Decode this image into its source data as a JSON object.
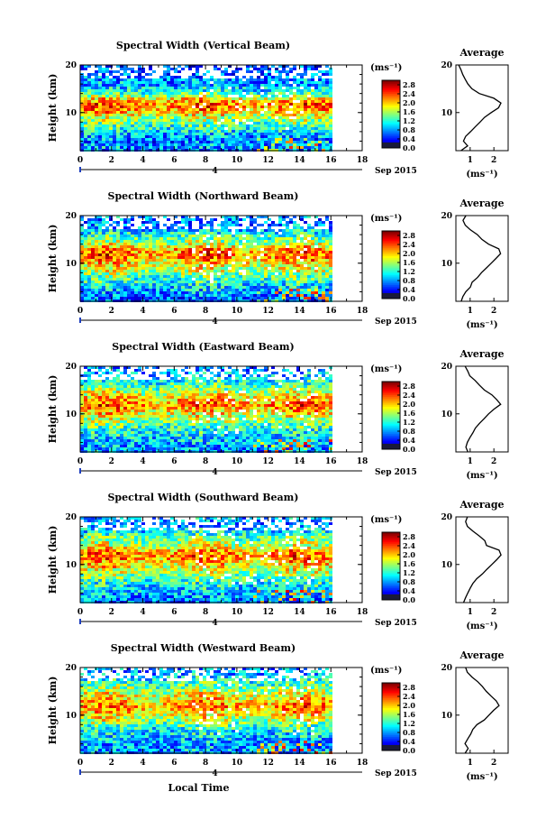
{
  "figure": {
    "bottom_xlabel": "Local Time",
    "date_label": "Sep 2015",
    "day_label": "4"
  },
  "chart_data": [
    {
      "type": "heatmap",
      "title": "Spectral Width (Vertical Beam)",
      "ylabel": "Height (km)",
      "xlabel": "",
      "xlim": [
        0,
        18
      ],
      "ylim": [
        2,
        20
      ],
      "x_ticks": [
        "0",
        "2",
        "4",
        "6",
        "8",
        "10",
        "12",
        "14",
        "16",
        "18"
      ],
      "y_ticks": [
        "10",
        "20"
      ],
      "data_extent_hours": [
        0,
        16
      ],
      "colorbar": {
        "unit": "(ms⁻¹)",
        "range": [
          0.0,
          3.0
        ],
        "ticks": [
          "2.8",
          "2.4",
          "2.0",
          "1.6",
          "1.2",
          "0.8",
          "0.4",
          "0.0"
        ]
      },
      "average_profile": {
        "title": "Average",
        "xlabel": "(ms⁻¹)",
        "xlim": [
          0.4,
          2.6
        ],
        "x_ticks": [
          "1",
          "2"
        ],
        "height_km": [
          2,
          3,
          4,
          5,
          6,
          7,
          8,
          9,
          10,
          11,
          12,
          13,
          14,
          15,
          16,
          17,
          18,
          19,
          20
        ],
        "width_ms": [
          0.6,
          0.9,
          0.7,
          0.8,
          1.0,
          1.2,
          1.4,
          1.6,
          1.9,
          2.2,
          2.3,
          2.0,
          1.4,
          1.1,
          0.9,
          0.8,
          0.7,
          0.6,
          0.5
        ]
      }
    },
    {
      "type": "heatmap",
      "title": "Spectral Width (Northward Beam)",
      "ylabel": "Height (km)",
      "xlabel": "",
      "xlim": [
        0,
        18
      ],
      "ylim": [
        2,
        20
      ],
      "x_ticks": [
        "0",
        "2",
        "4",
        "6",
        "8",
        "10",
        "12",
        "14",
        "16",
        "18"
      ],
      "y_ticks": [
        "10",
        "20"
      ],
      "data_extent_hours": [
        0,
        16
      ],
      "colorbar": {
        "unit": "(ms⁻¹)",
        "range": [
          0.0,
          3.0
        ],
        "ticks": [
          "2.8",
          "2.4",
          "2.0",
          "1.6",
          "1.2",
          "0.8",
          "0.4",
          "0.0"
        ]
      },
      "average_profile": {
        "title": "Average",
        "xlabel": "(ms⁻¹)",
        "xlim": [
          0.4,
          2.6
        ],
        "x_ticks": [
          "1",
          "2"
        ],
        "height_km": [
          2,
          3,
          4,
          5,
          6,
          7,
          8,
          9,
          10,
          11,
          12,
          13,
          14,
          15,
          16,
          17,
          18,
          19,
          20
        ],
        "width_ms": [
          0.6,
          0.7,
          0.8,
          1.0,
          1.1,
          1.3,
          1.5,
          1.7,
          1.9,
          2.1,
          2.3,
          2.2,
          1.8,
          1.5,
          1.3,
          1.0,
          0.8,
          0.7,
          0.8
        ]
      }
    },
    {
      "type": "heatmap",
      "title": "Spectral Width (Eastward Beam)",
      "ylabel": "Height (km)",
      "xlabel": "",
      "xlim": [
        0,
        18
      ],
      "ylim": [
        2,
        20
      ],
      "x_ticks": [
        "0",
        "2",
        "4",
        "6",
        "8",
        "10",
        "12",
        "14",
        "16",
        "18"
      ],
      "y_ticks": [
        "10",
        "20"
      ],
      "data_extent_hours": [
        0,
        16
      ],
      "colorbar": {
        "unit": "(ms⁻¹)",
        "range": [
          0.0,
          3.0
        ],
        "ticks": [
          "2.8",
          "2.4",
          "2.0",
          "1.6",
          "1.2",
          "0.8",
          "0.4",
          "0.0"
        ]
      },
      "average_profile": {
        "title": "Average",
        "xlabel": "(ms⁻¹)",
        "xlim": [
          0.4,
          2.6
        ],
        "x_ticks": [
          "1",
          "2"
        ],
        "height_km": [
          2,
          3,
          4,
          5,
          6,
          7,
          8,
          9,
          10,
          11,
          12,
          13,
          14,
          15,
          16,
          17,
          18,
          19,
          20
        ],
        "width_ms": [
          0.9,
          0.8,
          0.9,
          1.0,
          1.1,
          1.2,
          1.4,
          1.6,
          1.8,
          2.0,
          2.3,
          2.1,
          1.9,
          1.6,
          1.4,
          1.2,
          1.0,
          0.9,
          0.8
        ]
      }
    },
    {
      "type": "heatmap",
      "title": "Spectral Width (Southward Beam)",
      "ylabel": "Height (km)",
      "xlabel": "",
      "xlim": [
        0,
        18
      ],
      "ylim": [
        2,
        20
      ],
      "x_ticks": [
        "0",
        "2",
        "4",
        "6",
        "8",
        "10",
        "12",
        "14",
        "16",
        "18"
      ],
      "y_ticks": [
        "10",
        "20"
      ],
      "data_extent_hours": [
        0,
        16
      ],
      "colorbar": {
        "unit": "(ms⁻¹)",
        "range": [
          0.0,
          3.0
        ],
        "ticks": [
          "2.8",
          "2.4",
          "2.0",
          "1.6",
          "1.2",
          "0.8",
          "0.4",
          "0.0"
        ]
      },
      "average_profile": {
        "title": "Average",
        "xlabel": "(ms⁻¹)",
        "xlim": [
          0.4,
          2.6
        ],
        "x_ticks": [
          "1",
          "2"
        ],
        "height_km": [
          2,
          3,
          4,
          5,
          6,
          7,
          8,
          9,
          10,
          11,
          12,
          13,
          14,
          15,
          16,
          17,
          18,
          19,
          20
        ],
        "width_ms": [
          0.7,
          0.8,
          0.9,
          1.0,
          1.1,
          1.3,
          1.5,
          1.7,
          1.9,
          2.1,
          2.3,
          2.2,
          1.7,
          1.6,
          1.4,
          1.1,
          0.9,
          0.8,
          0.9
        ]
      }
    },
    {
      "type": "heatmap",
      "title": "Spectral Width (Westward Beam)",
      "ylabel": "Height (km)",
      "xlabel": "Local Time",
      "xlim": [
        0,
        18
      ],
      "ylim": [
        2,
        20
      ],
      "x_ticks": [
        "0",
        "2",
        "4",
        "6",
        "8",
        "10",
        "12",
        "14",
        "16",
        "18"
      ],
      "y_ticks": [
        "10",
        "20"
      ],
      "data_extent_hours": [
        0,
        16
      ],
      "colorbar": {
        "unit": "(ms⁻¹)",
        "range": [
          0.0,
          3.0
        ],
        "ticks": [
          "2.8",
          "2.4",
          "2.0",
          "1.6",
          "1.2",
          "0.8",
          "0.4",
          "0.0"
        ]
      },
      "average_profile": {
        "title": "Average",
        "xlabel": "(ms⁻¹)",
        "xlim": [
          0.4,
          2.6
        ],
        "x_ticks": [
          "1",
          "2"
        ],
        "height_km": [
          2,
          3,
          4,
          5,
          6,
          7,
          8,
          9,
          10,
          11,
          12,
          13,
          14,
          15,
          16,
          17,
          18,
          19,
          20
        ],
        "width_ms": [
          0.8,
          0.9,
          0.8,
          0.9,
          1.0,
          1.1,
          1.3,
          1.6,
          1.8,
          2.0,
          2.2,
          2.1,
          1.9,
          1.7,
          1.5,
          1.3,
          1.1,
          0.9,
          0.8
        ]
      }
    }
  ]
}
